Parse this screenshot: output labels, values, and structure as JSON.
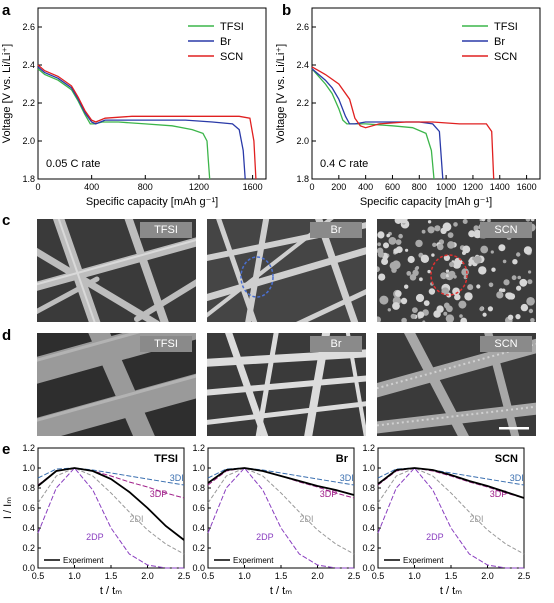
{
  "panels": {
    "a": "a",
    "b": "b",
    "c": "c",
    "d": "d",
    "e": "e"
  },
  "discharge": {
    "y_axis_label": "Voltage [V vs. Li/Li⁺]",
    "x_axis_label": "Specific capacity [mAh g⁻¹]",
    "legend": [
      "TFSI",
      "Br",
      "SCN"
    ],
    "rate_a": "0.05 C rate",
    "rate_b": "0.4 C rate"
  },
  "sem_labels": {
    "tfsi": "TFSI",
    "br": "Br",
    "scn": "SCN"
  },
  "transient": {
    "y_axis_label": "I / Iₘ",
    "x_axis_label": "t / tₘ",
    "legend_experiment": "Experiment",
    "curve_labels": [
      "3DI",
      "3DP",
      "2DI",
      "2DP"
    ],
    "panel_titles": [
      "TFSI",
      "Br",
      "SCN"
    ]
  },
  "colors": {
    "TFSI": "#3cb54a",
    "Br": "#2a3aa8",
    "SCN": "#e02020",
    "3DI": "#3a6fb0",
    "3DP": "#a0208a",
    "2DI": "#999999",
    "2DP": "#8a3fc0",
    "sem_label_bg": "#8a8a8a"
  },
  "chart_data": [
    {
      "type": "line",
      "panel": "a",
      "xlabel": "Specific capacity [mAh g⁻¹]",
      "ylabel": "Voltage [V vs. Li/Li⁺]",
      "xlim": [
        0,
        1700
      ],
      "ylim": [
        1.8,
        2.7
      ],
      "xticks": [
        0,
        400,
        800,
        1200,
        1600
      ],
      "yticks": [
        1.8,
        2.0,
        2.2,
        2.4,
        2.6
      ],
      "annotation": "0.05 C rate",
      "legend_position": "top-right",
      "series": [
        {
          "name": "TFSI",
          "x": [
            0,
            50,
            150,
            250,
            300,
            350,
            390,
            420,
            480,
            600,
            800,
            1000,
            1150,
            1230,
            1260,
            1270,
            1280
          ],
          "y": [
            2.38,
            2.35,
            2.32,
            2.27,
            2.21,
            2.14,
            2.09,
            2.09,
            2.1,
            2.1,
            2.09,
            2.08,
            2.06,
            2.04,
            2.0,
            1.9,
            1.8
          ]
        },
        {
          "name": "Br",
          "x": [
            0,
            50,
            150,
            250,
            300,
            350,
            400,
            430,
            500,
            700,
            900,
            1100,
            1300,
            1450,
            1500,
            1530,
            1545
          ],
          "y": [
            2.39,
            2.36,
            2.33,
            2.28,
            2.22,
            2.15,
            2.1,
            2.09,
            2.11,
            2.11,
            2.11,
            2.11,
            2.1,
            2.09,
            2.06,
            1.95,
            1.8
          ]
        },
        {
          "name": "SCN",
          "x": [
            0,
            50,
            150,
            250,
            300,
            350,
            400,
            430,
            500,
            700,
            900,
            1100,
            1300,
            1500,
            1580,
            1610,
            1625
          ],
          "y": [
            2.4,
            2.37,
            2.34,
            2.29,
            2.23,
            2.16,
            2.11,
            2.1,
            2.12,
            2.13,
            2.13,
            2.13,
            2.13,
            2.13,
            2.12,
            2.0,
            1.8
          ]
        }
      ]
    },
    {
      "type": "line",
      "panel": "b",
      "xlabel": "Specific capacity [mAh g⁻¹]",
      "ylabel": "Voltage [V vs. Li/Li⁺]",
      "xlim": [
        0,
        1700
      ],
      "ylim": [
        1.8,
        2.7
      ],
      "xticks": [
        0,
        200,
        400,
        600,
        800,
        1000,
        1200,
        1400,
        1600
      ],
      "yticks": [
        1.8,
        2.0,
        2.2,
        2.4,
        2.6
      ],
      "annotation": "0.4 C rate",
      "legend_position": "top-right",
      "series": [
        {
          "name": "TFSI",
          "x": [
            0,
            50,
            100,
            150,
            200,
            230,
            260,
            300,
            400,
            600,
            750,
            850,
            890,
            910
          ],
          "y": [
            2.38,
            2.34,
            2.3,
            2.25,
            2.17,
            2.11,
            2.09,
            2.09,
            2.09,
            2.08,
            2.07,
            2.04,
            1.95,
            1.8
          ]
        },
        {
          "name": "Br",
          "x": [
            0,
            50,
            100,
            150,
            200,
            250,
            280,
            320,
            400,
            600,
            800,
            900,
            950,
            975
          ],
          "y": [
            2.38,
            2.35,
            2.32,
            2.28,
            2.22,
            2.13,
            2.09,
            2.09,
            2.1,
            2.1,
            2.1,
            2.09,
            2.05,
            1.8
          ]
        },
        {
          "name": "SCN",
          "x": [
            0,
            50,
            100,
            200,
            280,
            320,
            360,
            400,
            500,
            700,
            900,
            1100,
            1300,
            1340,
            1355
          ],
          "y": [
            2.39,
            2.37,
            2.35,
            2.3,
            2.22,
            2.12,
            2.08,
            2.07,
            2.09,
            2.1,
            2.1,
            2.09,
            2.09,
            2.05,
            1.8
          ]
        }
      ]
    },
    {
      "type": "line",
      "panel": "e",
      "xlabel": "t / tₘ",
      "ylabel": "I / Iₘ",
      "xlim": [
        0.5,
        2.5
      ],
      "ylim": [
        0.0,
        1.2
      ],
      "xticks": [
        0.5,
        1.0,
        1.5,
        2.0,
        2.5
      ],
      "yticks": [
        0.0,
        0.2,
        0.4,
        0.6,
        0.8,
        1.0,
        1.2
      ],
      "legend": [
        "Experiment"
      ],
      "legend_position": "bottom-left",
      "theory_curves": {
        "x": [
          0.5,
          0.75,
          1.0,
          1.25,
          1.5,
          1.75,
          2.0,
          2.25,
          2.5
        ],
        "3DI": [
          0.9,
          0.99,
          1.0,
          0.98,
          0.95,
          0.92,
          0.89,
          0.86,
          0.83
        ],
        "3DP": [
          0.83,
          0.97,
          1.0,
          0.97,
          0.92,
          0.86,
          0.81,
          0.75,
          0.7
        ],
        "2DI": [
          0.65,
          0.92,
          1.0,
          0.92,
          0.75,
          0.56,
          0.38,
          0.24,
          0.14
        ],
        "2DP": [
          0.35,
          0.8,
          1.0,
          0.78,
          0.4,
          0.14,
          0.03,
          0.0,
          0.0
        ]
      },
      "series": [
        {
          "name": "TFSI",
          "x": [
            0.5,
            0.75,
            1.0,
            1.25,
            1.5,
            1.75,
            2.0,
            2.25,
            2.5
          ],
          "y": [
            0.82,
            0.97,
            1.0,
            0.97,
            0.89,
            0.76,
            0.6,
            0.42,
            0.28
          ]
        },
        {
          "name": "Br",
          "x": [
            0.5,
            0.75,
            1.0,
            1.25,
            1.5,
            1.75,
            2.0,
            2.25,
            2.5
          ],
          "y": [
            0.85,
            0.98,
            1.0,
            0.97,
            0.92,
            0.87,
            0.82,
            0.78,
            0.73
          ]
        },
        {
          "name": "SCN",
          "x": [
            0.5,
            0.75,
            1.0,
            1.25,
            1.5,
            1.75,
            2.0,
            2.25,
            2.5
          ],
          "y": [
            0.84,
            0.98,
            1.0,
            0.98,
            0.93,
            0.87,
            0.82,
            0.76,
            0.7
          ]
        }
      ]
    }
  ]
}
